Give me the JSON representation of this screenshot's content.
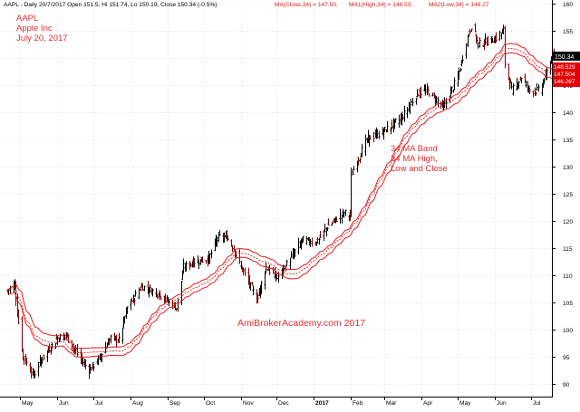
{
  "header": {
    "symbol_line": "AAPL - Daily 20/7/2017 Open 151.5, Hi 151.74, Lo 150.19, Close 150.34 (-0.5%)",
    "ma_close": "MA(Close,34) = 147.50,",
    "ma_high": "MA1(High,34) = 148.53,",
    "ma_low": "MA2(Low,34) = 146.27"
  },
  "annotations": {
    "ticker": "AAPL",
    "company": "Apple Inc",
    "date": "July 20, 2017",
    "band_line1": "34 MA Band",
    "band_line2": "34 MA High,",
    "band_line3": "Low and Close",
    "watermark": "AmiBrokerAcademy.com  2017"
  },
  "price_tags": {
    "last_close": "150.34",
    "ma_high": "148.529",
    "ma_close": "147.504",
    "ma_low": "146.267"
  },
  "colors": {
    "bars": "#000000",
    "bars_down": "#7a0000",
    "ma_band": "#e41a1c",
    "annotation_text": "#e03030",
    "grid": "#d9d9d9",
    "tag_red": "#e30000",
    "tag_black": "#000000"
  },
  "chart_data": {
    "type": "ohlc",
    "title": "AAPL - Daily",
    "ylim": [
      88,
      160
    ],
    "y_ticks": [
      90,
      95,
      100,
      105,
      110,
      115,
      120,
      125,
      130,
      135,
      140,
      145,
      150,
      155,
      160
    ],
    "x_ticks": [
      "May",
      "Jun",
      "Jul",
      "Aug",
      "Sep",
      "Oct",
      "Nov",
      "Dec",
      "2017",
      "Feb",
      "Mar",
      "Apr",
      "May",
      "Jun",
      "Jul"
    ],
    "x_tick_months": [
      "2016-05",
      "2016-06",
      "2016-07",
      "2016-08",
      "2016-09",
      "2016-10",
      "2016-11",
      "2016-12",
      "2017-01",
      "2017-02",
      "2017-03",
      "2017-04",
      "2017-05",
      "2017-06",
      "2017-07"
    ],
    "grid": true,
    "price_anchors": [
      {
        "date": "2016-04-20",
        "close": 107.2
      },
      {
        "date": "2016-04-26",
        "close": 108.5
      },
      {
        "date": "2016-04-28",
        "close": 103.0
      },
      {
        "date": "2016-05-03",
        "close": 95.0
      },
      {
        "date": "2016-05-12",
        "close": 91.5
      },
      {
        "date": "2016-05-18",
        "close": 94.5
      },
      {
        "date": "2016-06-01",
        "close": 98.5
      },
      {
        "date": "2016-06-08",
        "close": 99.0
      },
      {
        "date": "2016-06-17",
        "close": 95.5
      },
      {
        "date": "2016-06-27",
        "close": 92.5
      },
      {
        "date": "2016-07-05",
        "close": 94.5
      },
      {
        "date": "2016-07-15",
        "close": 98.5
      },
      {
        "date": "2016-07-22",
        "close": 98.0
      },
      {
        "date": "2016-07-29",
        "close": 104.0
      },
      {
        "date": "2016-08-10",
        "close": 108.0
      },
      {
        "date": "2016-08-25",
        "close": 106.5
      },
      {
        "date": "2016-09-08",
        "close": 104.0
      },
      {
        "date": "2016-09-14",
        "close": 111.5
      },
      {
        "date": "2016-09-23",
        "close": 112.5
      },
      {
        "date": "2016-10-05",
        "close": 113.0
      },
      {
        "date": "2016-10-12",
        "close": 117.0
      },
      {
        "date": "2016-10-20",
        "close": 117.0
      },
      {
        "date": "2016-10-26",
        "close": 115.0
      },
      {
        "date": "2016-11-01",
        "close": 111.5
      },
      {
        "date": "2016-11-10",
        "close": 107.5
      },
      {
        "date": "2016-11-14",
        "close": 105.5
      },
      {
        "date": "2016-11-22",
        "close": 111.5
      },
      {
        "date": "2016-12-01",
        "close": 109.5
      },
      {
        "date": "2016-12-12",
        "close": 113.0
      },
      {
        "date": "2016-12-22",
        "close": 116.5
      },
      {
        "date": "2017-01-03",
        "close": 116.0
      },
      {
        "date": "2017-01-12",
        "close": 119.0
      },
      {
        "date": "2017-01-26",
        "close": 121.5
      },
      {
        "date": "2017-01-31",
        "close": 121.0
      },
      {
        "date": "2017-02-01",
        "close": 128.5
      },
      {
        "date": "2017-02-14",
        "close": 135.0
      },
      {
        "date": "2017-02-28",
        "close": 136.5
      },
      {
        "date": "2017-03-15",
        "close": 139.0
      },
      {
        "date": "2017-03-28",
        "close": 143.5
      },
      {
        "date": "2017-04-05",
        "close": 144.0
      },
      {
        "date": "2017-04-19",
        "close": 141.0
      },
      {
        "date": "2017-05-01",
        "close": 146.5
      },
      {
        "date": "2017-05-08",
        "close": 153.0
      },
      {
        "date": "2017-05-12",
        "close": 156.0
      },
      {
        "date": "2017-05-18",
        "close": 152.5
      },
      {
        "date": "2017-06-01",
        "close": 153.5
      },
      {
        "date": "2017-06-08",
        "close": 155.0
      },
      {
        "date": "2017-06-09",
        "close": 149.0
      },
      {
        "date": "2017-06-15",
        "close": 144.0
      },
      {
        "date": "2017-06-23",
        "close": 146.5
      },
      {
        "date": "2017-06-30",
        "close": 144.0
      },
      {
        "date": "2017-07-07",
        "close": 144.0
      },
      {
        "date": "2017-07-12",
        "close": 146.0
      },
      {
        "date": "2017-07-17",
        "close": 149.5
      },
      {
        "date": "2017-07-20",
        "close": 150.34
      }
    ],
    "ma_period": 34,
    "last_bar": {
      "date": "2017-07-20",
      "open": 151.5,
      "high": 151.74,
      "low": 150.19,
      "close": 150.34
    },
    "last_ma": {
      "close": 147.5,
      "high": 148.53,
      "low": 146.27
    }
  }
}
